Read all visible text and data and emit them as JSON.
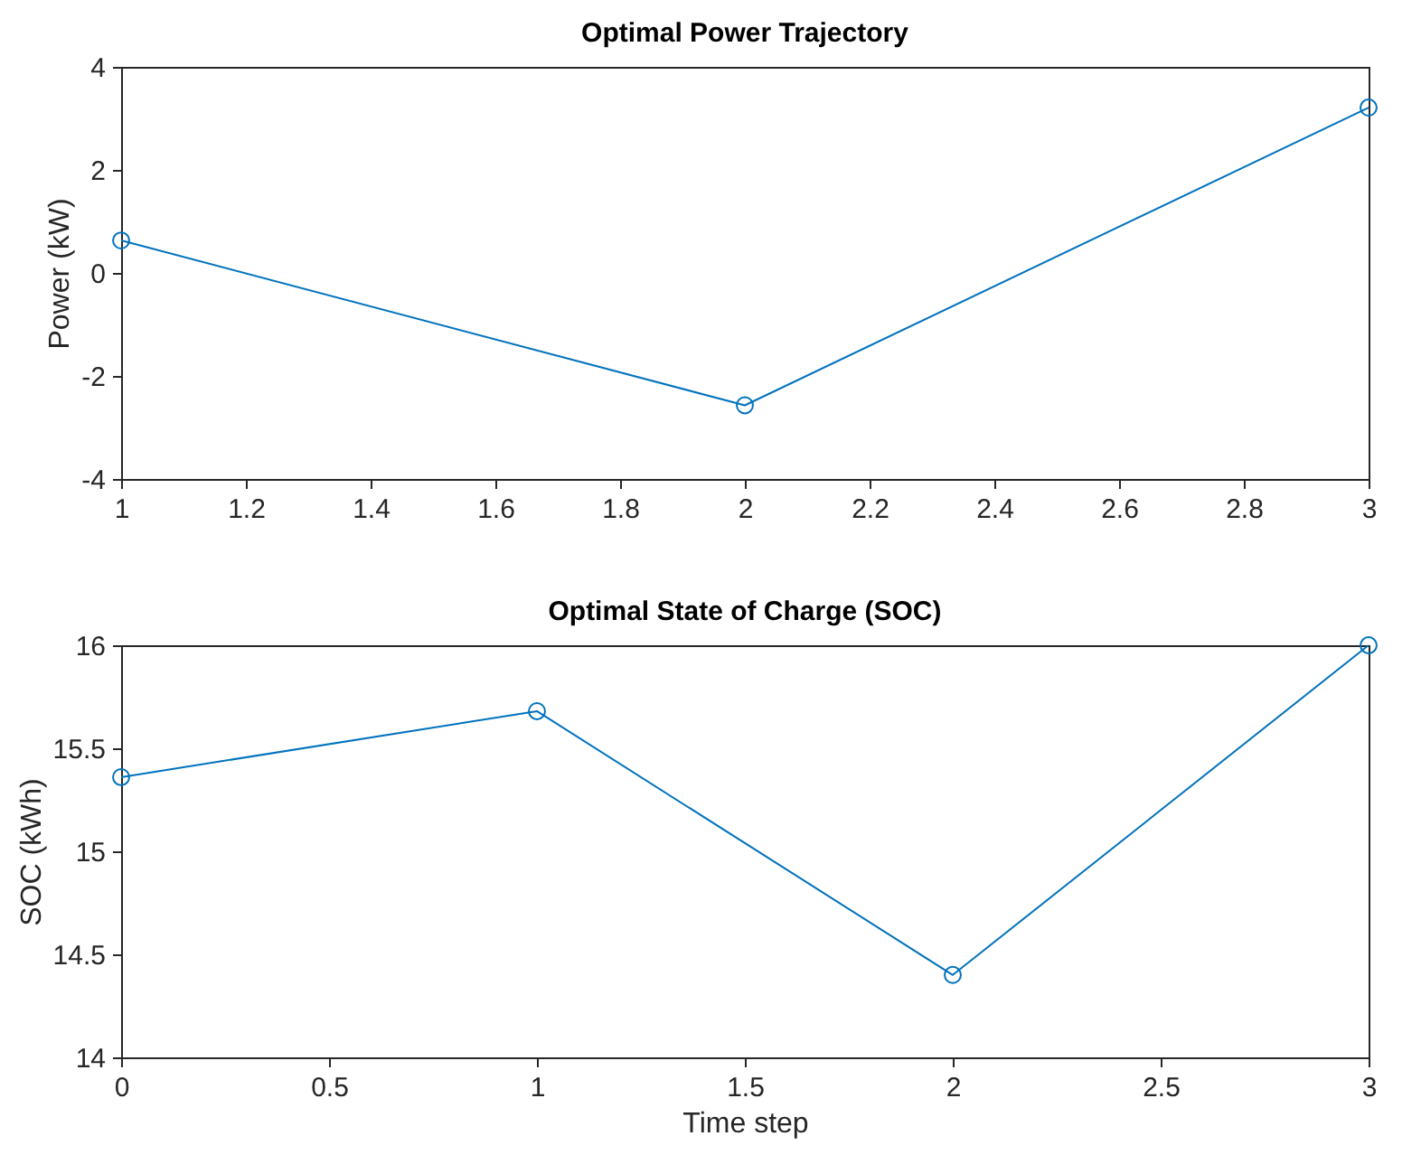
{
  "chart_data": [
    {
      "type": "line",
      "title": "Optimal Power Trajectory",
      "ylabel": "Power (kW)",
      "x": [
        1,
        2,
        3
      ],
      "xlim": [
        1,
        3
      ],
      "xticks": [
        1,
        1.2,
        1.4,
        1.6,
        1.8,
        2,
        2.2,
        2.4,
        2.6,
        2.8,
        3
      ],
      "ylim": [
        -4,
        4
      ],
      "yticks": [
        -4,
        -2,
        0,
        2,
        4
      ],
      "marker": "circle",
      "series": [
        {
          "color": "#0072bd",
          "values": [
            0.63,
            -2.57,
            3.21
          ]
        }
      ]
    },
    {
      "type": "line",
      "title": "Optimal State of Charge (SOC)",
      "xlabel": "Time step",
      "ylabel": "SOC (kWh)",
      "x": [
        0,
        1,
        2,
        3
      ],
      "xlim": [
        0,
        3
      ],
      "xticks": [
        0,
        0.5,
        1,
        1.5,
        2,
        2.5,
        3
      ],
      "ylim": [
        14,
        16
      ],
      "yticks": [
        14,
        14.5,
        15,
        15.5,
        16
      ],
      "marker": "circle",
      "series": [
        {
          "color": "#0072bd",
          "values": [
            15.36,
            15.68,
            14.4,
            16
          ]
        }
      ]
    }
  ]
}
